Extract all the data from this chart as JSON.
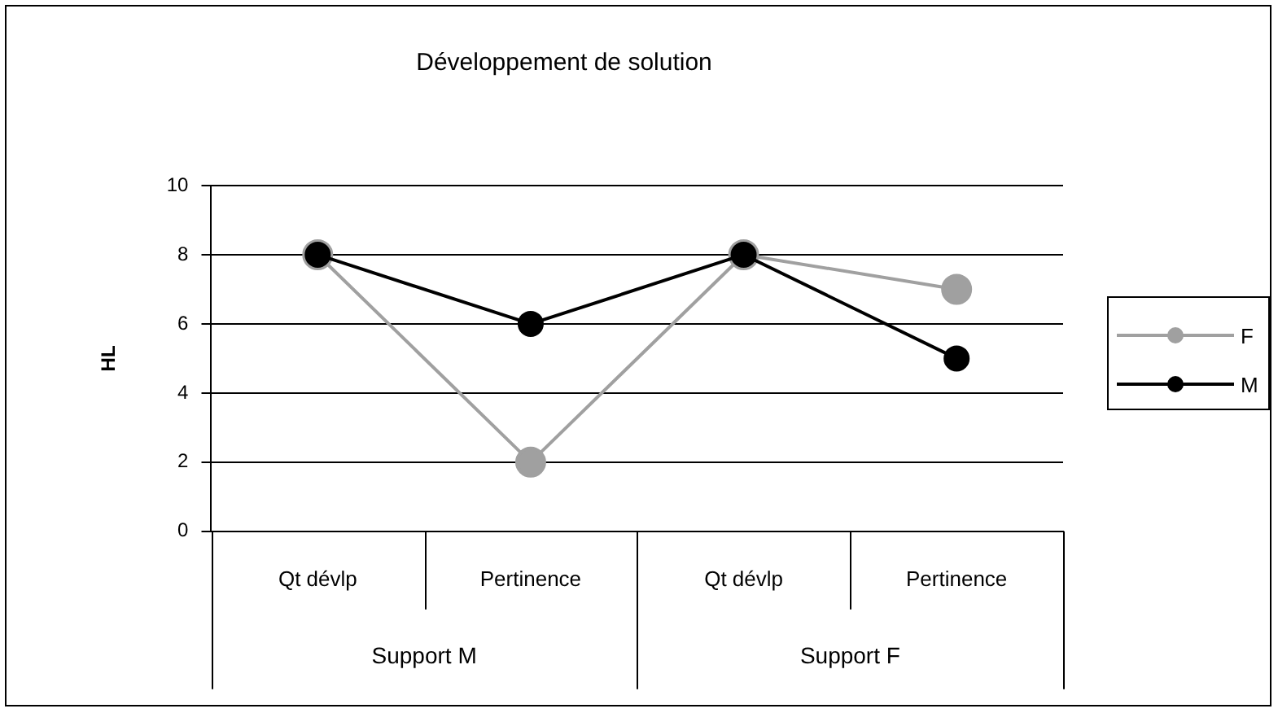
{
  "chart_data": {
    "type": "line",
    "title": "Développement de solution",
    "ylabel": "HL",
    "categories": [
      "Qt dévlp",
      "Pertinence",
      "Qt dévlp",
      "Pertinence"
    ],
    "annotations": [
      "Support M",
      "Support F"
    ],
    "series": [
      {
        "name": "F",
        "color": "#a0a0a0",
        "values": [
          8,
          2,
          8,
          7
        ]
      },
      {
        "name": "M",
        "color": "#000000",
        "values": [
          8,
          6,
          8,
          5
        ]
      }
    ],
    "ylim": [
      0,
      10
    ],
    "yticks": [
      0,
      2,
      4,
      6,
      8,
      10
    ],
    "grid": "y",
    "legend": "right",
    "marker": "circle"
  }
}
